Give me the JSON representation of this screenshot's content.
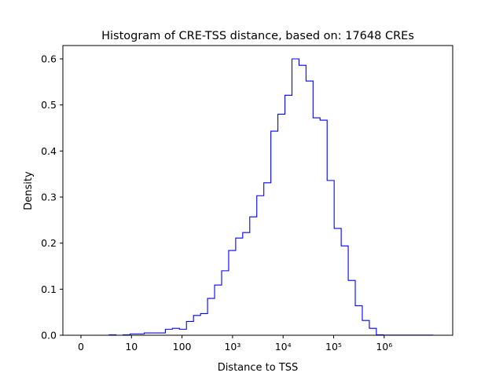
{
  "chart_data": {
    "type": "histogram",
    "title": "Histogram of CRE-TSS distance, based on: 17648 CREs",
    "xlabel": "Distance to TSS",
    "ylabel": "Density",
    "xscale": "log",
    "bins": 50,
    "bin_range": [
      0,
      9100000
    ],
    "ylim": [
      0,
      0.63
    ],
    "grid": false,
    "histtype": "step",
    "color": "#0000ff",
    "x_ticks": [
      {
        "value": 0,
        "label": "0"
      },
      {
        "value": 10,
        "label": "10"
      },
      {
        "value": 100,
        "label": "100"
      },
      {
        "value": 1000,
        "label": "10³"
      },
      {
        "value": 10000,
        "label": "10⁴"
      },
      {
        "value": 100000,
        "label": "10⁵"
      },
      {
        "value": 1000000,
        "label": "10⁶"
      }
    ],
    "y_ticks": [
      {
        "value": 0,
        "label": "0.0"
      },
      {
        "value": 0.1,
        "label": "0.1"
      },
      {
        "value": 0.2,
        "label": "0.2"
      },
      {
        "value": 0.3,
        "label": "0.3"
      },
      {
        "value": 0.4,
        "label": "0.4"
      },
      {
        "value": 0.5,
        "label": "0.5"
      },
      {
        "value": 0.6,
        "label": "0.6"
      }
    ],
    "density": [
      0,
      0,
      0,
      0,
      0.001,
      0,
      0.001,
      0.003,
      0.003,
      0.005,
      0.005,
      0.005,
      0.013,
      0.015,
      0.013,
      0.03,
      0.043,
      0.047,
      0.08,
      0.109,
      0.14,
      0.184,
      0.211,
      0.223,
      0.257,
      0.303,
      0.331,
      0.443,
      0.48,
      0.521,
      0.6,
      0.586,
      0.552,
      0.472,
      0.467,
      0.336,
      0.232,
      0.194,
      0.119,
      0.064,
      0.032,
      0.015,
      0.001,
      0.0003,
      0.0003,
      0.0003,
      0.0003,
      0.0003,
      0.0003,
      0.0003
    ]
  }
}
